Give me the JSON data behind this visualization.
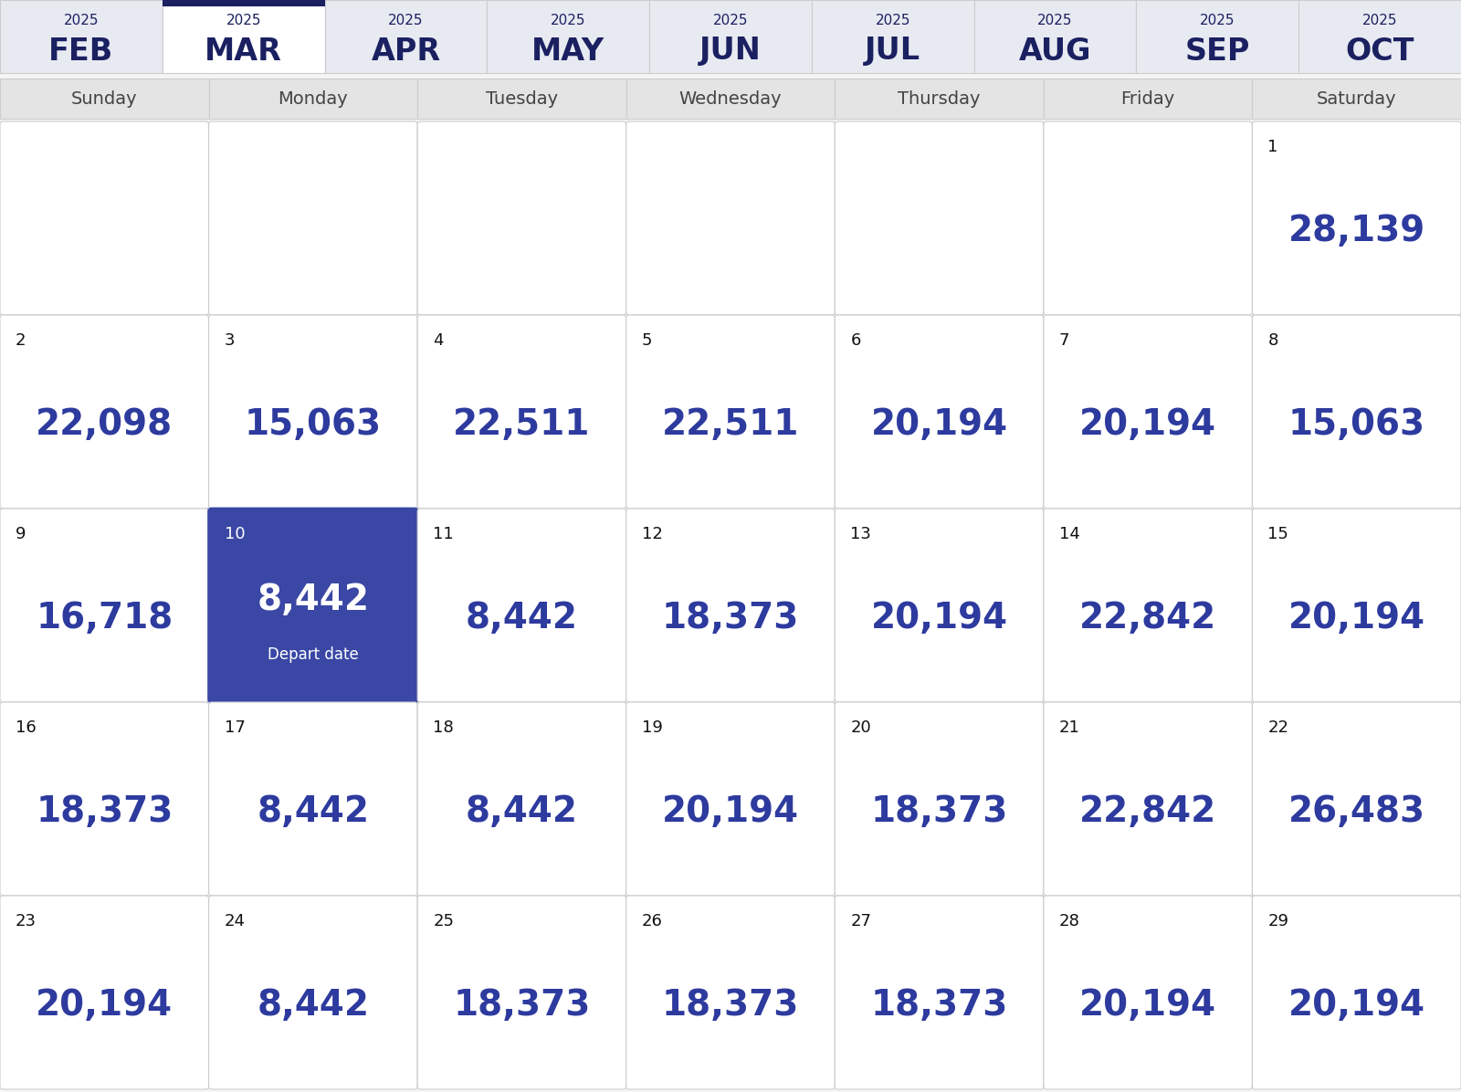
{
  "months": [
    "FEB",
    "MAR",
    "APR",
    "MAY",
    "JUN",
    "JUL",
    "AUG",
    "SEP",
    "OCT"
  ],
  "month_years": [
    "2025",
    "2025",
    "2025",
    "2025",
    "2025",
    "2025",
    "2025",
    "2025",
    "2025"
  ],
  "selected_month_idx": 1,
  "days_of_week": [
    "Sunday",
    "Monday",
    "Tuesday",
    "Wednesday",
    "Thursday",
    "Friday",
    "Saturday"
  ],
  "calendar": [
    [
      null,
      null,
      null,
      null,
      null,
      null,
      {
        "day": 1,
        "price": "28,139"
      }
    ],
    [
      {
        "day": 2,
        "price": "22,098"
      },
      {
        "day": 3,
        "price": "15,063"
      },
      {
        "day": 4,
        "price": "22,511"
      },
      {
        "day": 5,
        "price": "22,511"
      },
      {
        "day": 6,
        "price": "20,194"
      },
      {
        "day": 7,
        "price": "20,194"
      },
      {
        "day": 8,
        "price": "15,063"
      }
    ],
    [
      {
        "day": 9,
        "price": "16,718"
      },
      {
        "day": 10,
        "price": "8,442",
        "selected": true
      },
      {
        "day": 11,
        "price": "8,442"
      },
      {
        "day": 12,
        "price": "18,373"
      },
      {
        "day": 13,
        "price": "20,194"
      },
      {
        "day": 14,
        "price": "22,842"
      },
      {
        "day": 15,
        "price": "20,194"
      }
    ],
    [
      {
        "day": 16,
        "price": "18,373"
      },
      {
        "day": 17,
        "price": "8,442"
      },
      {
        "day": 18,
        "price": "8,442"
      },
      {
        "day": 19,
        "price": "20,194"
      },
      {
        "day": 20,
        "price": "18,373"
      },
      {
        "day": 21,
        "price": "22,842"
      },
      {
        "day": 22,
        "price": "26,483"
      }
    ],
    [
      {
        "day": 23,
        "price": "20,194"
      },
      {
        "day": 24,
        "price": "8,442"
      },
      {
        "day": 25,
        "price": "18,373"
      },
      {
        "day": 26,
        "price": "18,373"
      },
      {
        "day": 27,
        "price": "18,373"
      },
      {
        "day": 28,
        "price": "20,194"
      },
      {
        "day": 29,
        "price": "20,194"
      }
    ]
  ],
  "bg_color": "#f5f5f5",
  "empty_cell_bg": "#ffffff",
  "dow_bg": "#e4e4e4",
  "cell_bg": "#ffffff",
  "cell_border": "#cccccc",
  "price_color": "#2d3a9e",
  "day_num_color": "#111111",
  "selected_bg": "#3a47a5",
  "selected_price_color": "#ffffff",
  "selected_day_color": "#ffffff",
  "selected_label": "Depart date",
  "selected_label_color": "#ffffff",
  "month_nav_bg": "#e8eaf2",
  "month_nav_selected_bg": "#ffffff",
  "month_nav_text": "#1a2060",
  "month_top_bar_color": "#1a2060",
  "dow_text_color": "#444444",
  "nav_year_fontsize": 11,
  "nav_month_fontsize": 24,
  "dow_fontsize": 14,
  "day_num_fontsize": 13,
  "price_fontsize": 28,
  "depart_label_fontsize": 12
}
